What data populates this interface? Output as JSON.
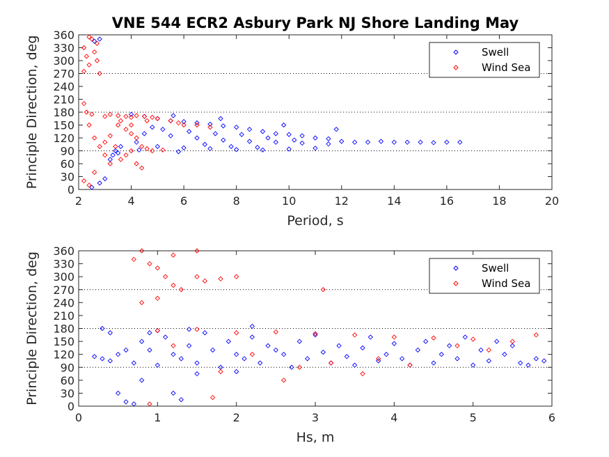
{
  "chart_data": [
    {
      "type": "scatter",
      "title": "VNE 544 ECR2 Asbury Park NJ Shore Landing May",
      "xlabel": "Period, s",
      "ylabel": "Principle Direction, deg",
      "xlim": [
        2,
        20
      ],
      "ylim": [
        0,
        360
      ],
      "xticks": [
        "2",
        "4",
        "6",
        "8",
        "10",
        "12",
        "14",
        "16",
        "18",
        "20"
      ],
      "yticks": [
        "0",
        "30",
        "60",
        "90",
        "120",
        "150",
        "180",
        "210",
        "240",
        "270",
        "300",
        "330",
        "360"
      ],
      "reference_lines": [
        90,
        180,
        270
      ],
      "legend_position": "top-right",
      "marker": "diamond",
      "series": [
        {
          "name": "Swell",
          "color": "#0000ff",
          "points": [
            [
              4.0,
              175
            ],
            [
              4.5,
              170
            ],
            [
              5.0,
              165
            ],
            [
              5.5,
              160
            ],
            [
              6.0,
              158
            ],
            [
              6.5,
              155
            ],
            [
              7.0,
              152
            ],
            [
              7.5,
              148
            ],
            [
              8.0,
              145
            ],
            [
              8.5,
              140
            ],
            [
              9.0,
              135
            ],
            [
              9.5,
              130
            ],
            [
              10.0,
              128
            ],
            [
              10.5,
              125
            ],
            [
              11.0,
              120
            ],
            [
              11.5,
              118
            ],
            [
              4.5,
              130
            ],
            [
              5.5,
              125
            ],
            [
              6.5,
              120
            ],
            [
              7.5,
              115
            ],
            [
              8.5,
              112
            ],
            [
              9.5,
              110
            ],
            [
              10.5,
              108
            ],
            [
              11.5,
              106
            ],
            [
              5.0,
              100
            ],
            [
              6.0,
              97
            ],
            [
              7.0,
              95
            ],
            [
              8.0,
              93
            ],
            [
              9.0,
              92
            ],
            [
              10.0,
              94
            ],
            [
              11.0,
              96
            ],
            [
              4.2,
              110
            ],
            [
              4.8,
              145
            ],
            [
              5.2,
              140
            ],
            [
              6.2,
              135
            ],
            [
              7.2,
              130
            ],
            [
              8.2,
              128
            ],
            [
              9.2,
              120
            ],
            [
              10.2,
              115
            ],
            [
              3.5,
              85
            ],
            [
              3.2,
              70
            ],
            [
              3.6,
              100
            ],
            [
              4.3,
              92
            ],
            [
              5.8,
              88
            ],
            [
              6.8,
              105
            ],
            [
              7.8,
              100
            ],
            [
              8.8,
              98
            ],
            [
              12.0,
              112
            ],
            [
              12.5,
              110
            ],
            [
              13.0,
              110
            ],
            [
              13.5,
              112
            ],
            [
              14.0,
              110
            ],
            [
              14.5,
              110
            ],
            [
              15.0,
              110
            ],
            [
              15.5,
              109
            ],
            [
              16.0,
              110
            ],
            [
              16.5,
              110
            ],
            [
              11.8,
              140
            ],
            [
              9.8,
              150
            ],
            [
              7.4,
              165
            ],
            [
              5.6,
              172
            ],
            [
              2.5,
              5
            ],
            [
              2.8,
              15
            ],
            [
              3.0,
              25
            ],
            [
              2.6,
              345
            ],
            [
              2.8,
              350
            ],
            [
              3.3,
              80
            ],
            [
              3.4,
              90
            ]
          ]
        },
        {
          "name": "Wind Sea",
          "color": "#ff0000",
          "points": [
            [
              2.2,
              330
            ],
            [
              2.3,
              310
            ],
            [
              2.4,
              290
            ],
            [
              2.5,
              350
            ],
            [
              2.6,
              320
            ],
            [
              2.7,
              300
            ],
            [
              2.2,
              275
            ],
            [
              2.8,
              270
            ],
            [
              2.4,
              355
            ],
            [
              2.7,
              340
            ],
            [
              2.3,
              180
            ],
            [
              2.5,
              175
            ],
            [
              2.2,
              200
            ],
            [
              2.4,
              150
            ],
            [
              2.6,
              120
            ],
            [
              2.8,
              100
            ],
            [
              3.0,
              80
            ],
            [
              3.2,
              60
            ],
            [
              2.2,
              20
            ],
            [
              2.4,
              10
            ],
            [
              2.6,
              40
            ],
            [
              3.0,
              170
            ],
            [
              3.2,
              175
            ],
            [
              3.5,
              172
            ],
            [
              3.8,
              170
            ],
            [
              4.0,
              168
            ],
            [
              4.2,
              172
            ],
            [
              4.5,
              170
            ],
            [
              4.8,
              168
            ],
            [
              5.0,
              165
            ],
            [
              5.5,
              160
            ],
            [
              6.0,
              150
            ],
            [
              3.5,
              150
            ],
            [
              3.8,
              140
            ],
            [
              4.0,
              130
            ],
            [
              4.2,
              120
            ],
            [
              4.4,
              100
            ],
            [
              4.6,
              95
            ],
            [
              4.0,
              90
            ],
            [
              3.8,
              80
            ],
            [
              3.6,
              70
            ],
            [
              4.2,
              60
            ],
            [
              4.4,
              50
            ],
            [
              4.8,
              90
            ],
            [
              5.2,
              92
            ],
            [
              3.4,
              100
            ],
            [
              3.0,
              110
            ],
            [
              3.2,
              125
            ],
            [
              5.8,
              155
            ],
            [
              6.5,
              150
            ],
            [
              7.0,
              145
            ],
            [
              4.6,
              160
            ],
            [
              3.6,
              160
            ],
            [
              4.0,
              150
            ]
          ]
        }
      ]
    },
    {
      "type": "scatter",
      "title": "",
      "xlabel": "Hs, m",
      "ylabel": "Principle Direction, deg",
      "xlim": [
        0,
        6
      ],
      "ylim": [
        0,
        360
      ],
      "xticks": [
        "0",
        "1",
        "2",
        "3",
        "4",
        "5",
        "6"
      ],
      "yticks": [
        "0",
        "30",
        "60",
        "90",
        "120",
        "150",
        "180",
        "210",
        "240",
        "270",
        "300",
        "330",
        "360"
      ],
      "reference_lines": [
        90,
        180,
        270
      ],
      "legend_position": "top-right",
      "marker": "diamond",
      "series": [
        {
          "name": "Swell",
          "color": "#0000ff",
          "points": [
            [
              0.2,
              115
            ],
            [
              0.3,
              110
            ],
            [
              0.4,
              105
            ],
            [
              0.5,
              120
            ],
            [
              0.6,
              130
            ],
            [
              0.7,
              100
            ],
            [
              0.8,
              150
            ],
            [
              0.9,
              170
            ],
            [
              1.0,
              175
            ],
            [
              1.1,
              160
            ],
            [
              1.2,
              120
            ],
            [
              1.3,
              110
            ],
            [
              1.4,
              140
            ],
            [
              1.5,
              100
            ],
            [
              1.6,
              170
            ],
            [
              1.7,
              130
            ],
            [
              1.8,
              90
            ],
            [
              1.9,
              150
            ],
            [
              2.0,
              120
            ],
            [
              2.1,
              110
            ],
            [
              2.2,
              160
            ],
            [
              2.3,
              100
            ],
            [
              2.4,
              140
            ],
            [
              2.5,
              130
            ],
            [
              2.6,
              120
            ],
            [
              2.7,
              90
            ],
            [
              2.8,
              150
            ],
            [
              2.9,
              110
            ],
            [
              3.0,
              165
            ],
            [
              3.1,
              125
            ],
            [
              3.2,
              100
            ],
            [
              3.3,
              140
            ],
            [
              3.4,
              115
            ],
            [
              3.5,
              95
            ],
            [
              3.6,
              135
            ],
            [
              3.7,
              160
            ],
            [
              3.8,
              105
            ],
            [
              3.9,
              120
            ],
            [
              4.0,
              145
            ],
            [
              4.1,
              110
            ],
            [
              4.2,
              95
            ],
            [
              4.3,
              130
            ],
            [
              4.4,
              150
            ],
            [
              4.5,
              100
            ],
            [
              4.6,
              120
            ],
            [
              4.7,
              140
            ],
            [
              4.8,
              110
            ],
            [
              4.9,
              160
            ],
            [
              5.0,
              95
            ],
            [
              5.1,
              130
            ],
            [
              5.2,
              105
            ],
            [
              5.3,
              150
            ],
            [
              5.4,
              120
            ],
            [
              5.5,
              140
            ],
            [
              5.6,
              100
            ],
            [
              5.7,
              95
            ],
            [
              5.8,
              110
            ],
            [
              5.9,
              105
            ],
            [
              0.3,
              180
            ],
            [
              0.4,
              170
            ],
            [
              0.5,
              30
            ],
            [
              0.6,
              10
            ],
            [
              0.7,
              5
            ],
            [
              1.2,
              30
            ],
            [
              1.3,
              15
            ],
            [
              0.8,
              60
            ],
            [
              1.5,
              75
            ],
            [
              2.0,
              80
            ],
            [
              1.0,
              95
            ],
            [
              0.9,
              130
            ],
            [
              2.2,
              185
            ],
            [
              1.4,
              178
            ]
          ]
        },
        {
          "name": "Wind Sea",
          "color": "#ff0000",
          "points": [
            [
              0.7,
              340
            ],
            [
              0.8,
              360
            ],
            [
              0.9,
              330
            ],
            [
              1.0,
              320
            ],
            [
              1.1,
              300
            ],
            [
              1.2,
              280
            ],
            [
              1.3,
              270
            ],
            [
              1.5,
              300
            ],
            [
              1.6,
              290
            ],
            [
              1.8,
              295
            ],
            [
              2.0,
              300
            ],
            [
              1.0,
              250
            ],
            [
              0.8,
              240
            ],
            [
              1.2,
              350
            ],
            [
              1.5,
              360
            ],
            [
              3.1,
              270
            ],
            [
              1.0,
              175
            ],
            [
              1.5,
              178
            ],
            [
              2.0,
              170
            ],
            [
              2.5,
              172
            ],
            [
              3.0,
              168
            ],
            [
              3.5,
              165
            ],
            [
              4.0,
              160
            ],
            [
              4.5,
              158
            ],
            [
              5.0,
              155
            ],
            [
              5.5,
              150
            ],
            [
              1.2,
              140
            ],
            [
              2.2,
              120
            ],
            [
              3.2,
              100
            ],
            [
              4.2,
              95
            ],
            [
              5.2,
              130
            ],
            [
              5.8,
              165
            ],
            [
              2.8,
              90
            ],
            [
              3.8,
              110
            ],
            [
              4.8,
              140
            ],
            [
              1.8,
              80
            ],
            [
              0.9,
              5
            ],
            [
              1.7,
              20
            ],
            [
              2.6,
              60
            ],
            [
              3.6,
              75
            ]
          ]
        }
      ]
    }
  ]
}
